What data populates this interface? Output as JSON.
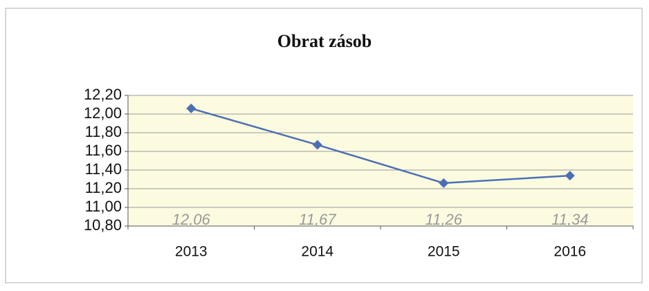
{
  "chart_data": {
    "type": "line",
    "title": "Obrat zásob",
    "categories": [
      "2013",
      "2014",
      "2015",
      "2016"
    ],
    "values": [
      12.06,
      11.67,
      11.26,
      11.34
    ],
    "value_labels": [
      "12,06",
      "11,67",
      "11,26",
      "11,34"
    ],
    "color": "#4a6fb5",
    "ylim": [
      10.8,
      12.2
    ],
    "yticks": [
      {
        "value": 10.8,
        "label": "10,80"
      },
      {
        "value": 11.0,
        "label": "11,00"
      },
      {
        "value": 11.2,
        "label": "11,20"
      },
      {
        "value": 11.4,
        "label": "11,40"
      },
      {
        "value": 11.6,
        "label": "11,60"
      },
      {
        "value": 11.8,
        "label": "11,80"
      },
      {
        "value": 12.0,
        "label": "12,00"
      },
      {
        "value": 12.2,
        "label": "12,20"
      }
    ],
    "grid": true
  }
}
